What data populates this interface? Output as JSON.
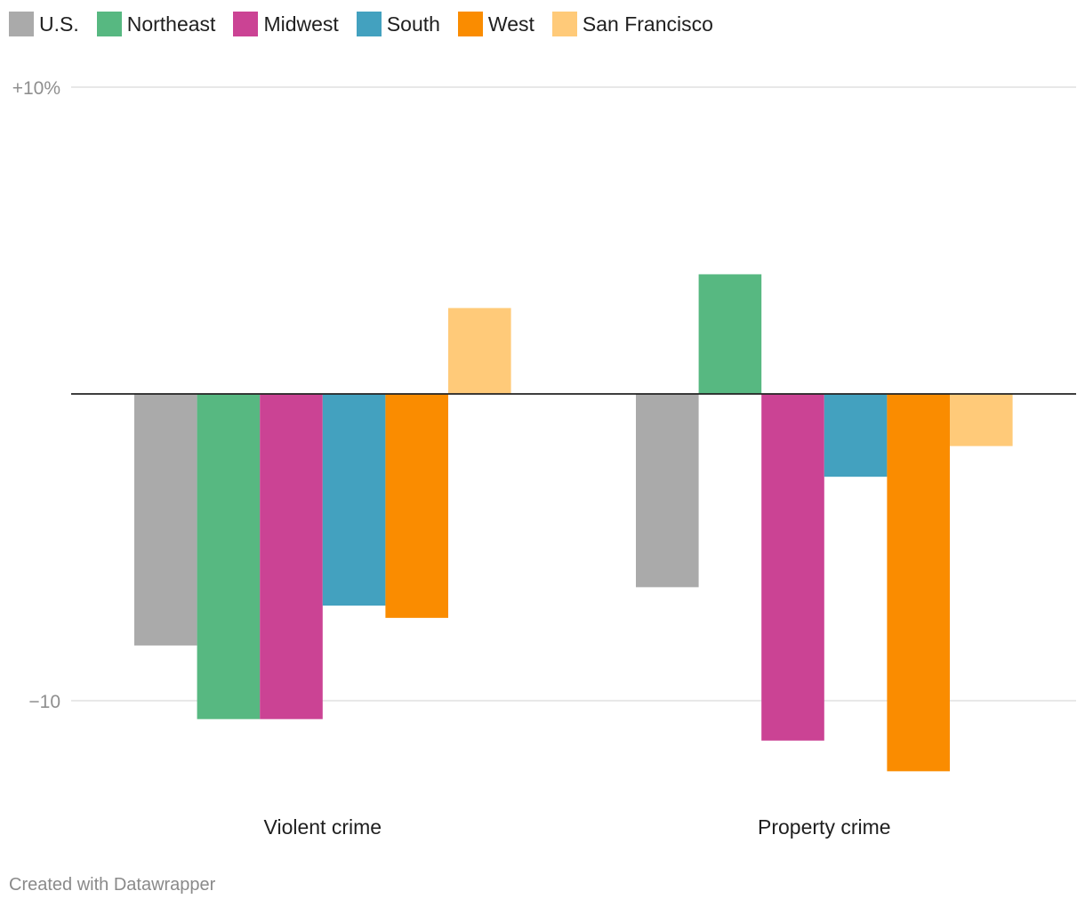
{
  "chart_data": {
    "type": "bar",
    "categories": [
      "Violent crime",
      "Property crime"
    ],
    "series": [
      {
        "name": "U.S.",
        "color": "#aaaaaa",
        "values": [
          -8.2,
          -6.3
        ]
      },
      {
        "name": "Northeast",
        "color": "#57b881",
        "values": [
          -10.6,
          3.9
        ]
      },
      {
        "name": "Midwest",
        "color": "#cb4394",
        "values": [
          -10.6,
          -11.3
        ]
      },
      {
        "name": "South",
        "color": "#43a1bf",
        "values": [
          -6.9,
          -2.7
        ]
      },
      {
        "name": "West",
        "color": "#fa8c00",
        "values": [
          -7.3,
          -12.3
        ]
      },
      {
        "name": "San Francisco",
        "color": "#ffca79",
        "values": [
          2.8,
          -1.7
        ]
      }
    ],
    "yticks": [
      {
        "value": 10,
        "label": "+10%"
      },
      {
        "value": -10,
        "label": "−10"
      }
    ],
    "ylim": [
      -13,
      10
    ],
    "title": "",
    "xlabel": "",
    "ylabel": "",
    "legend_position": "top-left",
    "grid": true
  },
  "footer": {
    "credit": "Created with Datawrapper"
  }
}
